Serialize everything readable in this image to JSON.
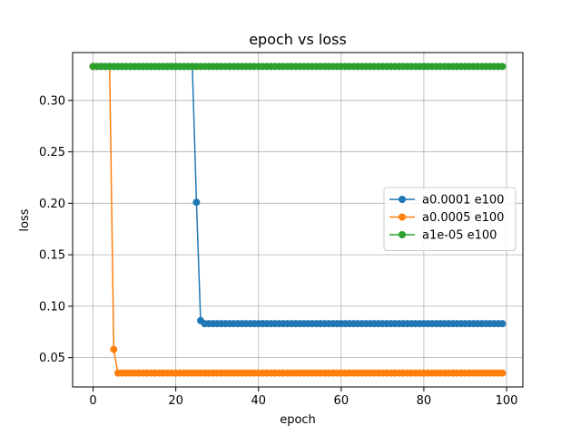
{
  "chart_data": {
    "type": "line",
    "title": "epoch vs loss",
    "xlabel": "epoch",
    "ylabel": "loss",
    "xlim": [
      -4.95,
      103.95
    ],
    "ylim": [
      0.0215,
      0.3465
    ],
    "xticks": [
      0,
      20,
      40,
      60,
      80,
      100
    ],
    "yticks": [
      0.05,
      0.1,
      0.15,
      0.2,
      0.25,
      0.3
    ],
    "xtick_labels": [
      "0",
      "20",
      "40",
      "60",
      "80",
      "100"
    ],
    "ytick_labels": [
      "0.05",
      "0.10",
      "0.15",
      "0.20",
      "0.25",
      "0.30"
    ],
    "grid": true,
    "legend_position": "center-right",
    "x_range": [
      0,
      99
    ],
    "series": [
      {
        "name": "a0.0001 e100",
        "color": "#1f77b4",
        "marker": "circle",
        "segments": [
          {
            "from": 0,
            "to": 24,
            "value": 0.333
          },
          {
            "x": 25,
            "value": 0.201
          },
          {
            "x": 26,
            "value": 0.086
          },
          {
            "from": 27,
            "to": 99,
            "value": 0.083
          }
        ]
      },
      {
        "name": "a0.0005 e100",
        "color": "#ff7f0e",
        "marker": "circle",
        "segments": [
          {
            "from": 0,
            "to": 4,
            "value": 0.333
          },
          {
            "x": 5,
            "value": 0.058
          },
          {
            "from": 6,
            "to": 99,
            "value": 0.035
          }
        ]
      },
      {
        "name": "a1e-05 e100",
        "color": "#2ca02c",
        "marker": "circle",
        "segments": [
          {
            "from": 0,
            "to": 99,
            "value": 0.333
          }
        ]
      }
    ]
  }
}
